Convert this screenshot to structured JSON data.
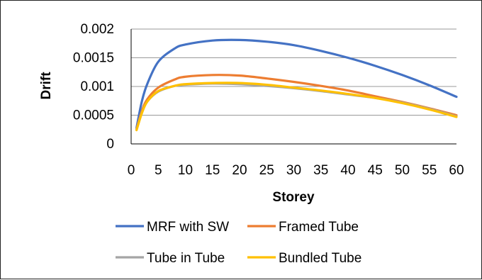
{
  "chart_data": {
    "type": "line",
    "title": "",
    "xlabel": "Storey",
    "ylabel": "Drift",
    "xlim": [
      0,
      60
    ],
    "ylim": [
      0,
      0.002
    ],
    "x_ticks": [
      0,
      5,
      10,
      15,
      20,
      25,
      30,
      35,
      40,
      45,
      50,
      55,
      60
    ],
    "x_tick_labels": [
      "0",
      "5",
      "10",
      "15",
      "20",
      "25",
      "30",
      "35",
      "40",
      "45",
      "50",
      "55",
      "60"
    ],
    "y_ticks": [
      0,
      0.0005,
      0.001,
      0.0015,
      0.002
    ],
    "y_tick_labels": [
      "0",
      "0.0005",
      "0.001",
      "0.0015",
      "0.002"
    ],
    "grid": "horizontal",
    "legend_position": "bottom",
    "x": [
      1,
      2,
      3,
      5,
      8,
      10,
      15,
      20,
      25,
      30,
      35,
      40,
      45,
      50,
      55,
      60
    ],
    "series": [
      {
        "name": "MRF with SW",
        "color": "#4472C4",
        "values": [
          0.00028,
          0.00075,
          0.00105,
          0.00143,
          0.00166,
          0.00173,
          0.0018,
          0.00181,
          0.00178,
          0.00172,
          0.00162,
          0.0015,
          0.00136,
          0.0012,
          0.00102,
          0.00082
        ]
      },
      {
        "name": "Framed Tube",
        "color": "#ED7D31",
        "values": [
          0.00026,
          0.00058,
          0.00078,
          0.00098,
          0.00112,
          0.00117,
          0.0012,
          0.00119,
          0.00114,
          0.00108,
          0.00101,
          0.00093,
          0.00083,
          0.00073,
          0.00062,
          0.0005
        ]
      },
      {
        "name": "Tube in Tube",
        "color": "#A5A5A5",
        "values": [
          0.00025,
          0.00055,
          0.00074,
          0.00091,
          0.00101,
          0.00103,
          0.00105,
          0.00104,
          0.00101,
          0.00097,
          0.00092,
          0.00086,
          0.0008,
          0.00072,
          0.00061,
          0.00048
        ]
      },
      {
        "name": "Bundled Tube",
        "color": "#FFC000",
        "values": [
          0.00024,
          0.00054,
          0.00074,
          0.00092,
          0.00101,
          0.00104,
          0.00106,
          0.00106,
          0.00103,
          0.00098,
          0.00093,
          0.00087,
          0.0008,
          0.00071,
          0.0006,
          0.00047
        ]
      }
    ]
  }
}
